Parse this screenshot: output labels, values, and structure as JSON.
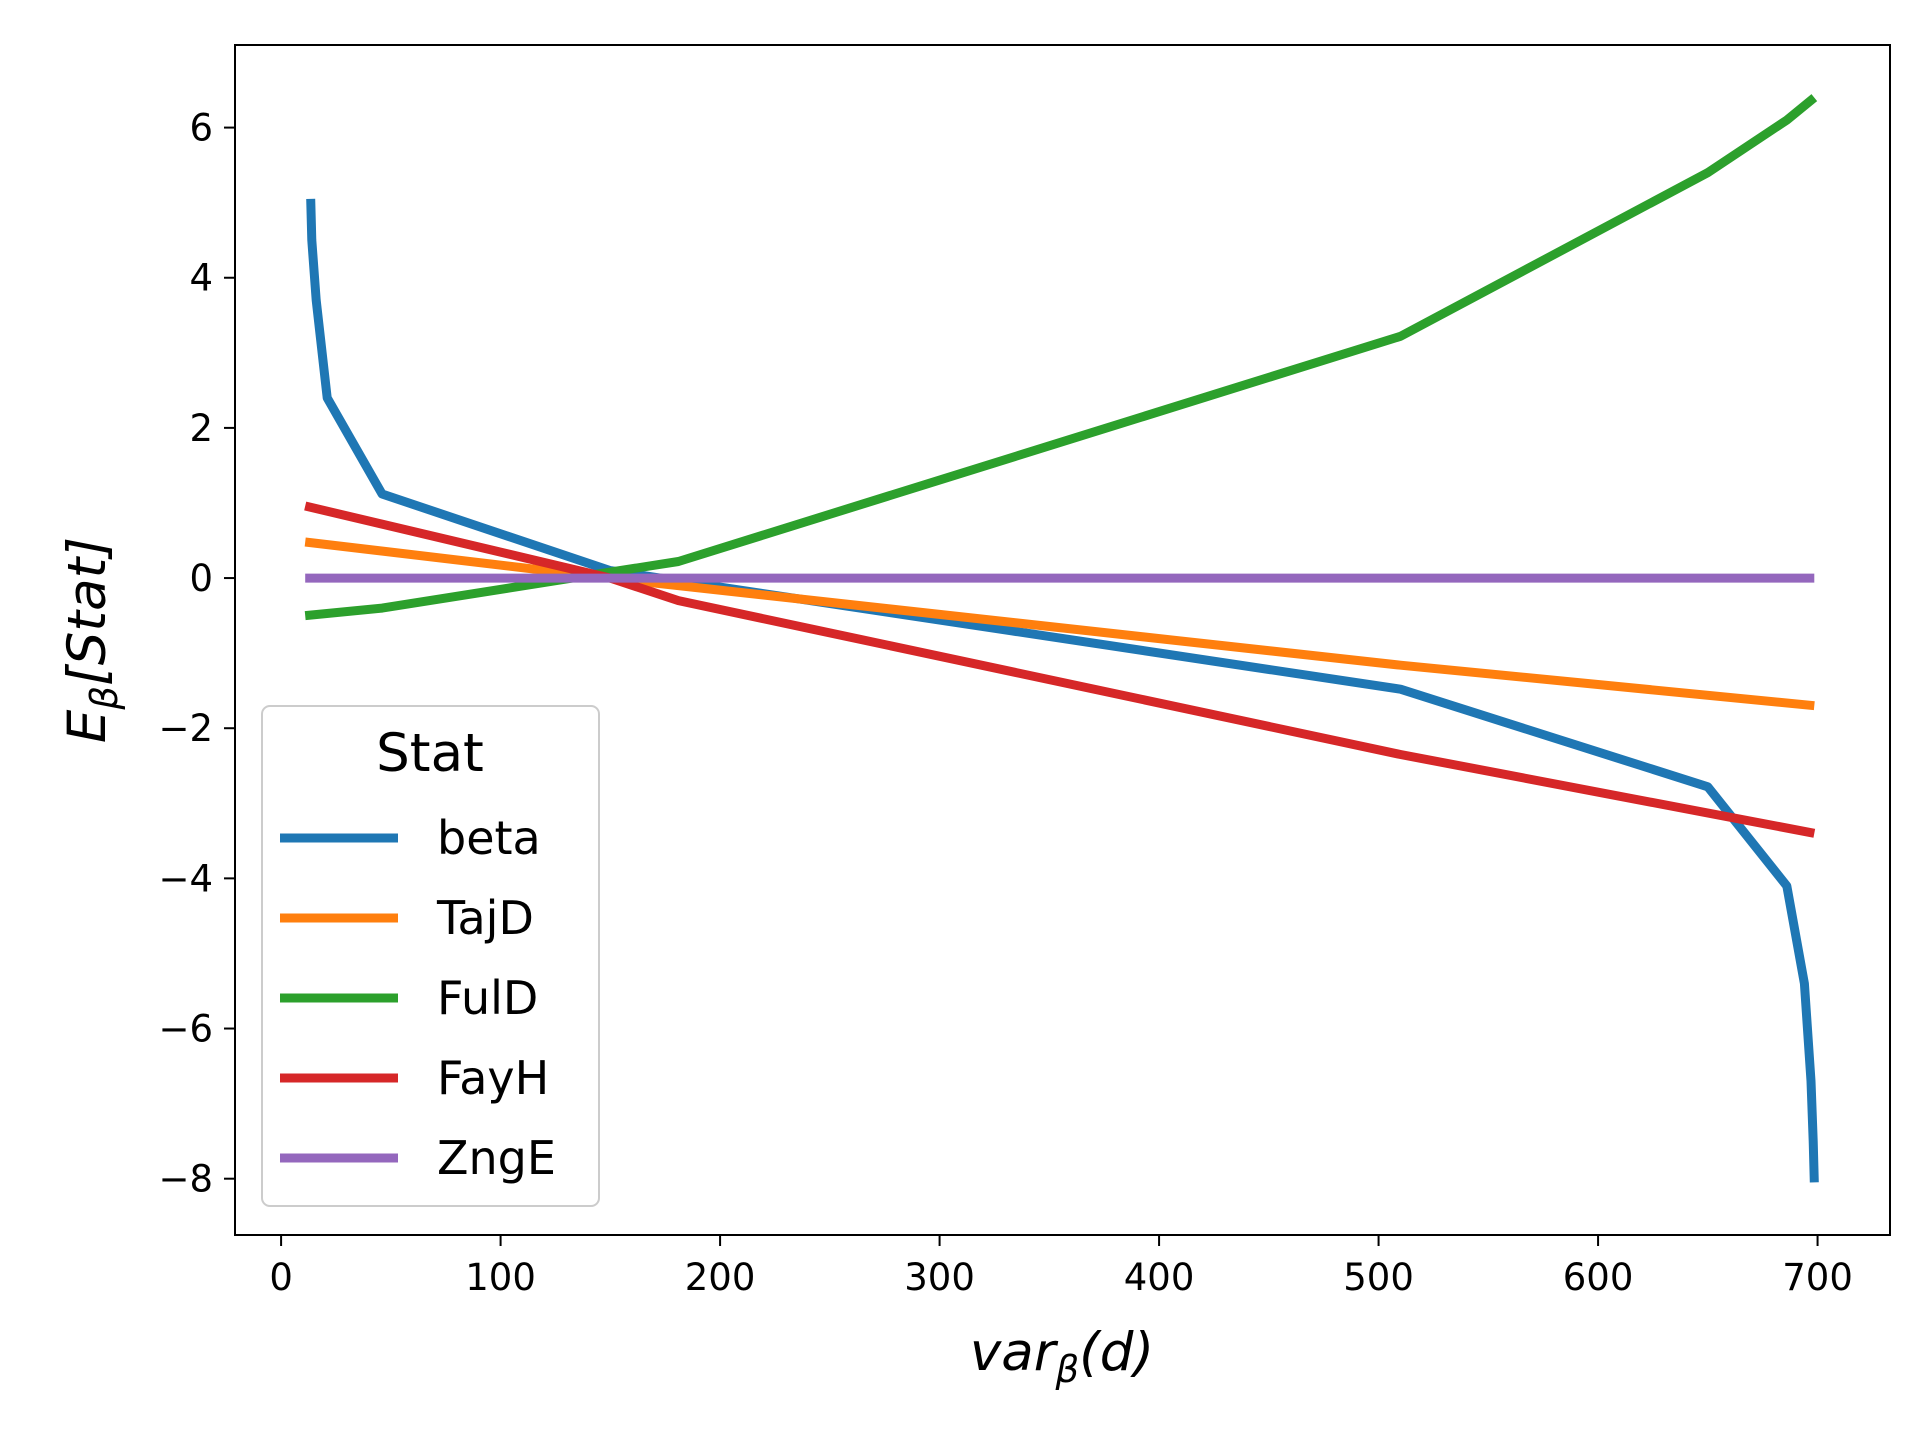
{
  "chart_data": {
    "type": "line",
    "xlabel": {
      "main": "var",
      "sub": "β",
      "rest": "(d)"
    },
    "ylabel": {
      "main": "E",
      "sub": "β",
      "rest": "[Stat]"
    },
    "xlim": [
      -21,
      733
    ],
    "ylim": [
      -8.75,
      7.1
    ],
    "x_ticks": [
      0,
      100,
      200,
      300,
      400,
      500,
      600,
      700
    ],
    "x_tick_labels": [
      "0",
      "100",
      "200",
      "300",
      "400",
      "500",
      "600",
      "700"
    ],
    "y_ticks": [
      -8,
      -6,
      -4,
      -2,
      0,
      2,
      4,
      6
    ],
    "y_tick_labels": [
      "−8",
      "−6",
      "−4",
      "−2",
      "0",
      "2",
      "4",
      "6"
    ],
    "grid": false,
    "legend": {
      "title": "Stat",
      "placement": "lower-left"
    },
    "series": [
      {
        "name": "beta",
        "color": "#1f77b4",
        "x": [
          13.5,
          14,
          16,
          21,
          46,
          150,
          510,
          650,
          686,
          694,
          697,
          698,
          698.5
        ],
        "y": [
          5.05,
          4.5,
          3.7,
          2.4,
          1.12,
          0.1,
          -1.48,
          -2.78,
          -4.1,
          -5.4,
          -6.7,
          -7.5,
          -8.05
        ]
      },
      {
        "name": "TajD",
        "color": "#ff7f0e",
        "x": [
          11,
          150,
          510,
          698.5
        ],
        "y": [
          0.48,
          0.0,
          -1.16,
          -1.7
        ]
      },
      {
        "name": "FulD",
        "color": "#2ca02c",
        "x": [
          11,
          46,
          150,
          181,
          510,
          650,
          686,
          698.5
        ],
        "y": [
          -0.5,
          -0.4,
          0.08,
          0.22,
          3.22,
          5.4,
          6.1,
          6.4
        ]
      },
      {
        "name": "FayH",
        "color": "#d62728",
        "x": [
          11,
          150,
          181,
          510,
          698.5
        ],
        "y": [
          0.96,
          0.0,
          -0.3,
          -2.35,
          -3.4
        ]
      },
      {
        "name": "ZngE",
        "color": "#9467bd",
        "x": [
          11,
          698.5
        ],
        "y": [
          0.0,
          0.0
        ]
      }
    ]
  }
}
